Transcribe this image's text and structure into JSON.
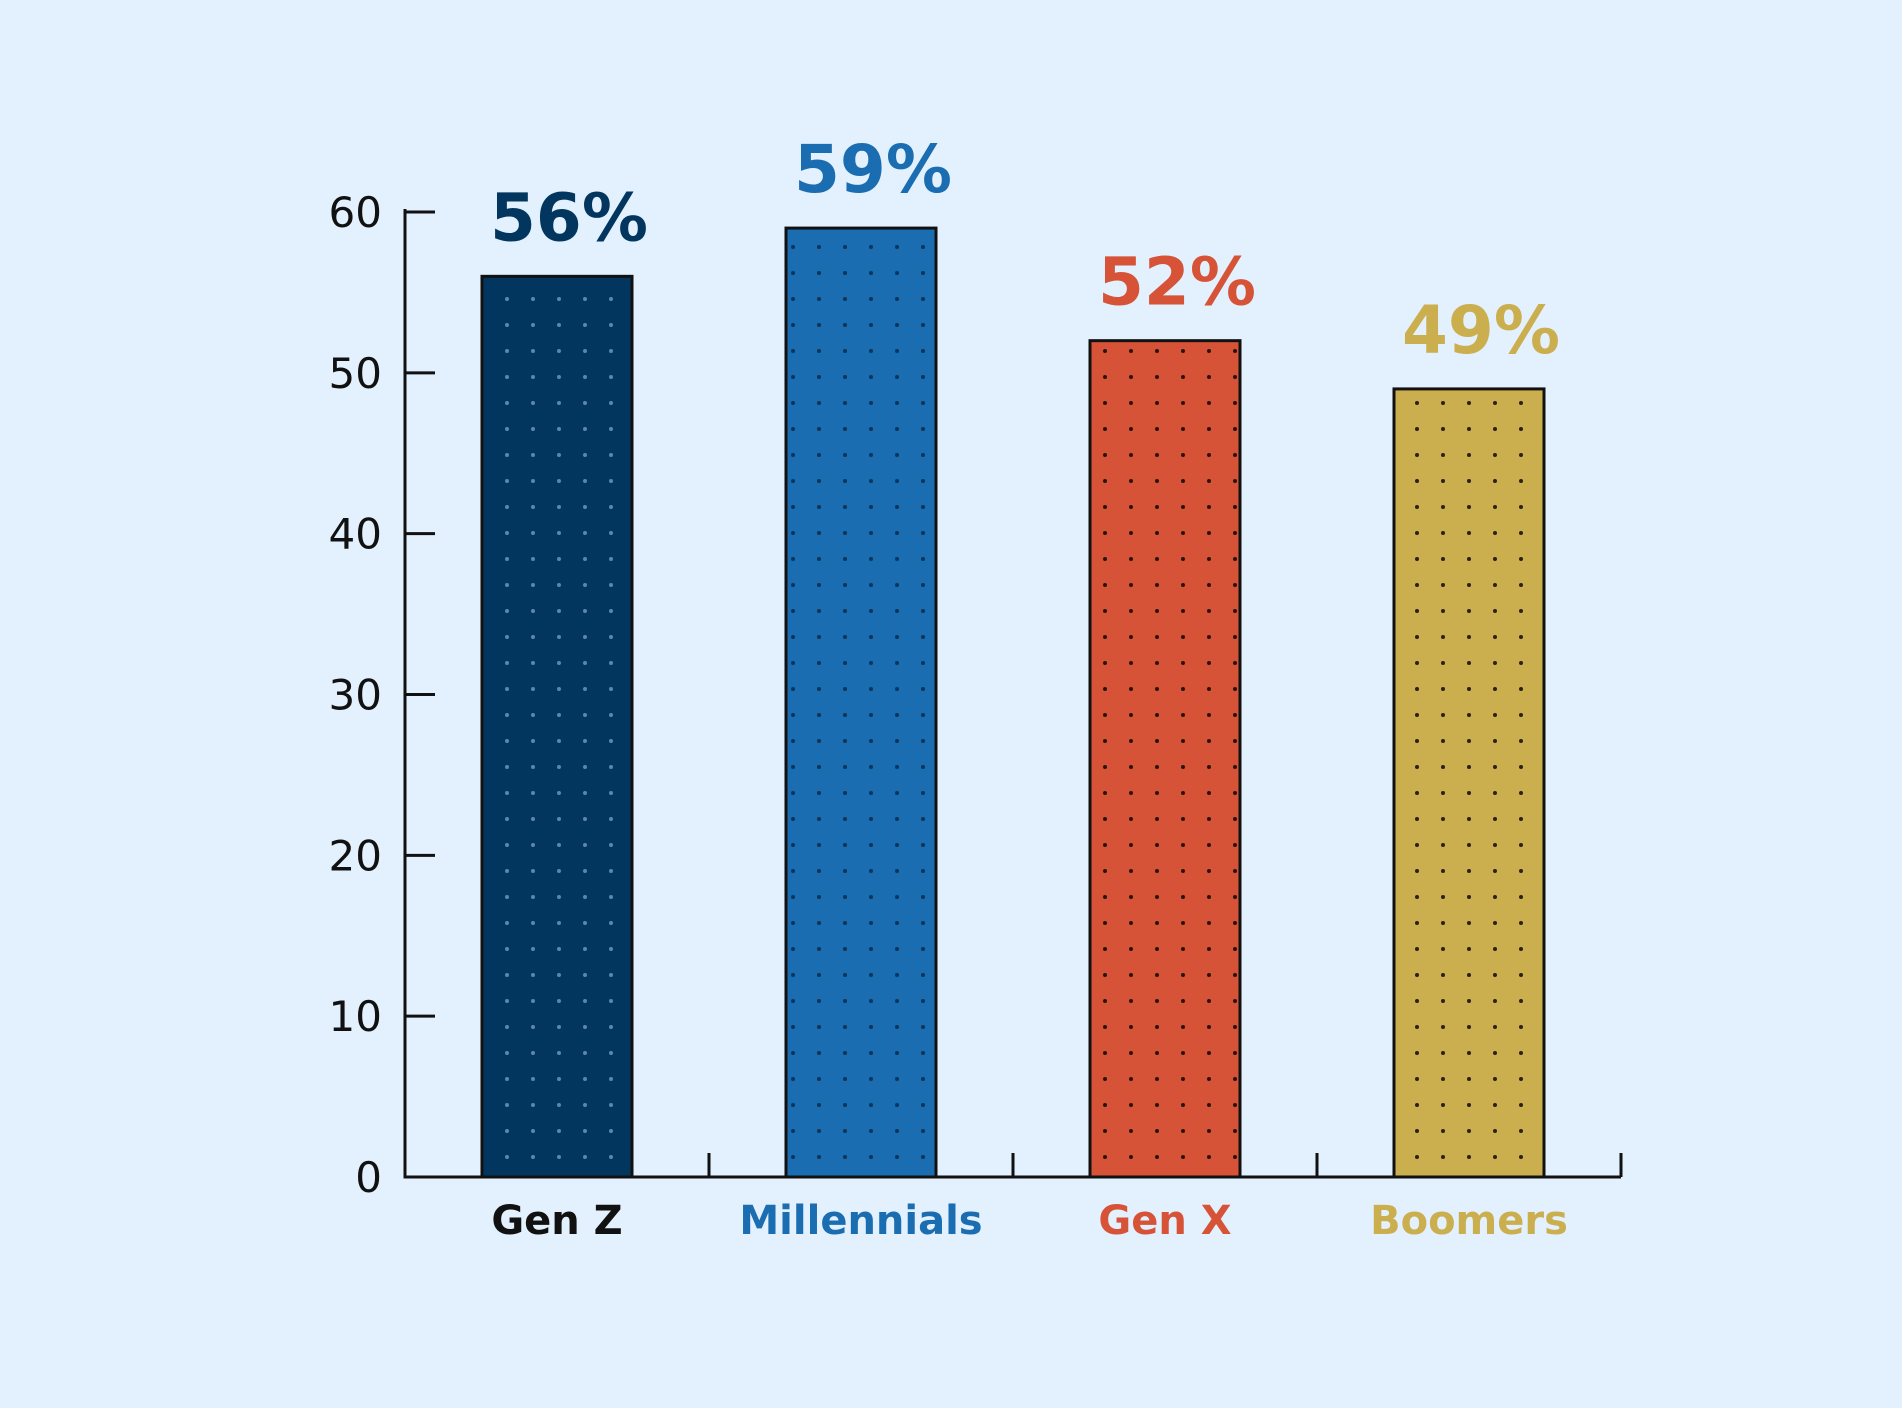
{
  "chart_data": {
    "type": "bar",
    "categories": [
      "Gen Z",
      "Millennials",
      "Gen X",
      "Boomers"
    ],
    "values": [
      56,
      59,
      52,
      49
    ],
    "value_labels": [
      "56%",
      "59%",
      "52%",
      "49%"
    ],
    "colors": [
      "#02365f",
      "#1a6db0",
      "#d65337",
      "#cbae4e"
    ],
    "dot_colors": [
      "#5e86a8",
      "#0b3558",
      "#2a120b",
      "#2a220c"
    ],
    "category_label_colors": [
      "#111111",
      "#1a6db0",
      "#d65337",
      "#cbae4e"
    ],
    "value_label_colors": [
      "#02365f",
      "#1a6db0",
      "#d65337",
      "#cbae4e"
    ],
    "title": "",
    "xlabel": "",
    "ylabel": "",
    "ylim": [
      0,
      60
    ],
    "yticks": [
      0,
      10,
      20,
      30,
      40,
      50,
      60
    ],
    "grid": false,
    "legend": "none",
    "fill_pattern": "dots",
    "axis_color": "#111111",
    "background": "#e3f0fd"
  }
}
